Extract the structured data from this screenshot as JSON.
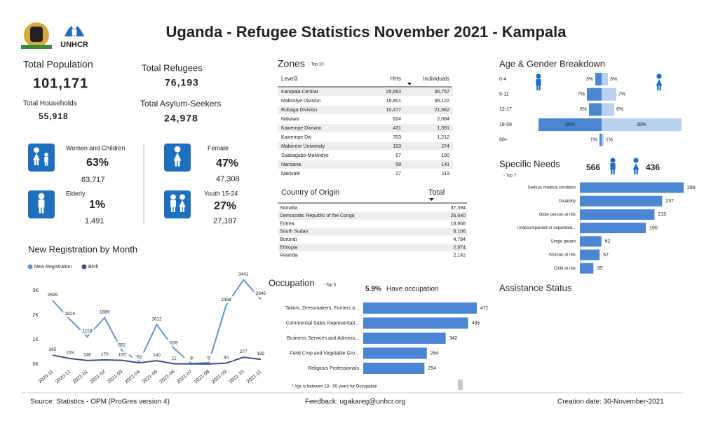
{
  "header": {
    "title": "Uganda - Refugee Statistics November 2021 - Kampala",
    "logo_text": "UNHCR"
  },
  "kpis": [
    {
      "label": "Total Population",
      "value": "101,171"
    },
    {
      "label": "Total Households",
      "value": "55,918"
    },
    {
      "label": "Total Refugees",
      "value": "76,193"
    },
    {
      "label": "Total Asylum-Seekers",
      "value": "24,978"
    }
  ],
  "groups": [
    {
      "label": "Women and Children",
      "percent": "63%",
      "count": "63,717"
    },
    {
      "label": "Elderly",
      "percent": "1%",
      "count": "1,491"
    },
    {
      "label": "Female",
      "percent": "47%",
      "count": "47,308"
    },
    {
      "label": "Youth 15-24",
      "percent": "27%",
      "count": "27,187"
    }
  ],
  "zones": {
    "title": "Zones",
    "subtitle": "- Top 10",
    "columns": [
      "Level3",
      "HHs",
      "Individuals"
    ],
    "rows": [
      [
        "Kampala Central",
        "25,663",
        "36,757"
      ],
      [
        "Makindye Division",
        "16,801",
        "36,122"
      ],
      [
        "Rubaga Division",
        "10,477",
        "21,562"
      ],
      [
        "Nakawa",
        "824",
        "2,084"
      ],
      [
        "Kawempe Division",
        "431",
        "1,391"
      ],
      [
        "Kawempe Div",
        "703",
        "1,212"
      ],
      [
        "Makerere University",
        "193",
        "274"
      ],
      [
        "Ssabagabo-Makindye",
        "57",
        "190"
      ],
      [
        "Nansana",
        "58",
        "141"
      ],
      [
        "Nakivale",
        "27",
        "113"
      ]
    ]
  },
  "countries": {
    "columns": [
      "Country of Origin",
      "Total"
    ],
    "rows": [
      [
        "Somalia",
        "37,394"
      ],
      [
        "Democratic Republic of the Congo",
        "26,640"
      ],
      [
        "Eritrea",
        "18,968"
      ],
      [
        "South Sudan",
        "6,106"
      ],
      [
        "Burundi",
        "4,784"
      ],
      [
        "Ethiopia",
        "2,974"
      ],
      [
        "Rwanda",
        "2,142"
      ]
    ]
  },
  "assistance": {
    "title": "Assistance Status"
  },
  "footer": {
    "source": "Source: Statistics - OPM (ProGres version 4)",
    "feedback": "Feedback: ugakareg@unhcr.org",
    "created": "Creation date: 30-November-2021"
  },
  "chart_data": [
    {
      "type": "line",
      "title": "New Registration by Month",
      "x": [
        "2020-11",
        "2020-12",
        "2021-01",
        "2021-02",
        "2021-03",
        "2021-04",
        "2021-05",
        "2021-06",
        "2021-07",
        "2021-08",
        "2021-09",
        "2021-10",
        "2021-11"
      ],
      "series": [
        {
          "name": "New Registration",
          "color": "#5f95d6",
          "values": [
            2595,
            1824,
            1118,
            1889,
            552,
            102,
            1612,
            639,
            20,
            62,
            2398,
            3441,
            2645
          ]
        },
        {
          "name": "Birth",
          "color": "#3d4f8f",
          "values": [
            365,
            228,
            146,
            170,
            155,
            52,
            140,
            11,
            8,
            5,
            40,
            277,
            192
          ]
        }
      ],
      "ylim": [
        0,
        3600
      ],
      "yticks": [
        {
          "value": 0,
          "label": "0K"
        },
        {
          "value": 1000,
          "label": "1K"
        },
        {
          "value": 2000,
          "label": "2K"
        },
        {
          "value": 3000,
          "label": "3K"
        }
      ],
      "grid": false
    },
    {
      "type": "butterfly",
      "title": "Age & Gender Breakdown",
      "categories": [
        "0-4",
        "5-11",
        "12-17",
        "18-59",
        "60+"
      ],
      "series": [
        {
          "color": "#4a86d4",
          "values": [
            3,
            7,
            6,
            30,
            1
          ],
          "value_labels": [
            "3%",
            "7%",
            "6%",
            "30%",
            "1%"
          ]
        },
        {
          "color": "#b9d1f0",
          "values": [
            3,
            7,
            6,
            38,
            1
          ],
          "value_labels": [
            "3%",
            "7%",
            "6%",
            "38%",
            "1%"
          ]
        }
      ]
    },
    {
      "type": "hbar",
      "title": "Specific Needs",
      "subtitle": "- Top 7",
      "male_count": 566,
      "female_count": 436,
      "categories": [
        "Serious medical condition",
        "Disability",
        "Older person at risk",
        "Unaccompanied or separated...",
        "Single parent",
        "Woman at risk",
        "Child at risk"
      ],
      "values": [
        299,
        237,
        215,
        190,
        62,
        57,
        39
      ],
      "color": "#4a86d4"
    },
    {
      "type": "hbar",
      "title": "Occupation",
      "subtitle": "- Top 5",
      "share": "5.9%",
      "share_label": "Have occupation",
      "note": "* Age is between 18 - 59 years for Occupation",
      "categories": [
        "Tailors, Dressmakers, Furriers a...",
        "Commercial Sales Representati...",
        "Business Services and Adminis...",
        "Field Crop and Vegetable Gro...",
        "Religious Professionals"
      ],
      "values": [
        471,
        435,
        342,
        264,
        254
      ],
      "color": "#4a86d4"
    }
  ]
}
